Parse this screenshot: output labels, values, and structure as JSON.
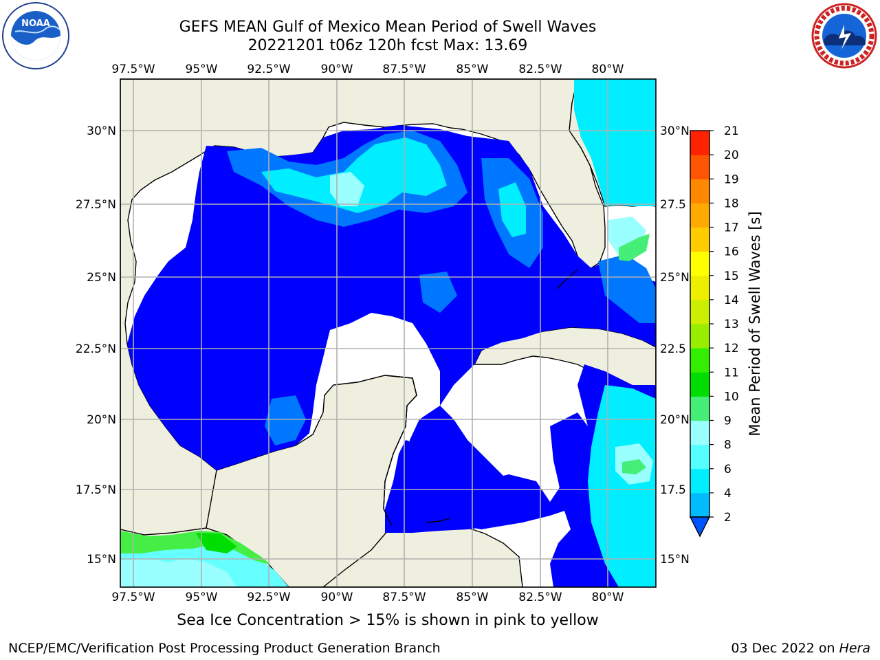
{
  "header": {
    "title_line1": "GEFS MEAN Gulf of Mexico Mean Period of Swell Waves",
    "title_line2": "20221201 t06z 120h fcst   Max: 13.69"
  },
  "map": {
    "lon_labels": [
      "97.5°W",
      "95°W",
      "92.5°W",
      "90°W",
      "87.5°W",
      "85°W",
      "82.5°W",
      "80°W"
    ],
    "lat_labels_left": [
      "30°N",
      "27.5°N",
      "25°N",
      "22.5°N",
      "20°N",
      "17.5°N",
      "15°N"
    ],
    "lat_labels_right": [
      "30°N",
      "27.5",
      "25°N",
      "22.5",
      "20°N",
      "17.5",
      "15°N"
    ],
    "colors": {
      "land": "#efefdf",
      "ocean_low": "#0000ff",
      "grid": "#b0b0b0"
    }
  },
  "colorbar": {
    "label": "Mean Period of Swell Waves [s]",
    "ticks": [
      "2",
      "4",
      "6",
      "8",
      "9",
      "10",
      "11",
      "12",
      "13",
      "14",
      "15",
      "16",
      "17",
      "18",
      "19",
      "20",
      "21"
    ],
    "colors": [
      "#0055ff",
      "#00bbff",
      "#00eeff",
      "#55ffff",
      "#99ffff",
      "#44ee77",
      "#00dd00",
      "#33ee00",
      "#99ee00",
      "#ccee00",
      "#eeee00",
      "#ffff00",
      "#ffcc00",
      "#ffaa00",
      "#ff8800",
      "#ff5500",
      "#ff2200",
      "#ff0000"
    ]
  },
  "footer": {
    "ice_note": "Sea Ice Concentration > 15% is shown in pink to yellow",
    "credit": "NCEP/EMC/Verification Post Processing Product Generation Branch",
    "date_text": "03 Dec 2022 on",
    "date_host": "Hera"
  },
  "logos": {
    "left": "noaa-logo",
    "right": "national-weather-service-logo"
  }
}
